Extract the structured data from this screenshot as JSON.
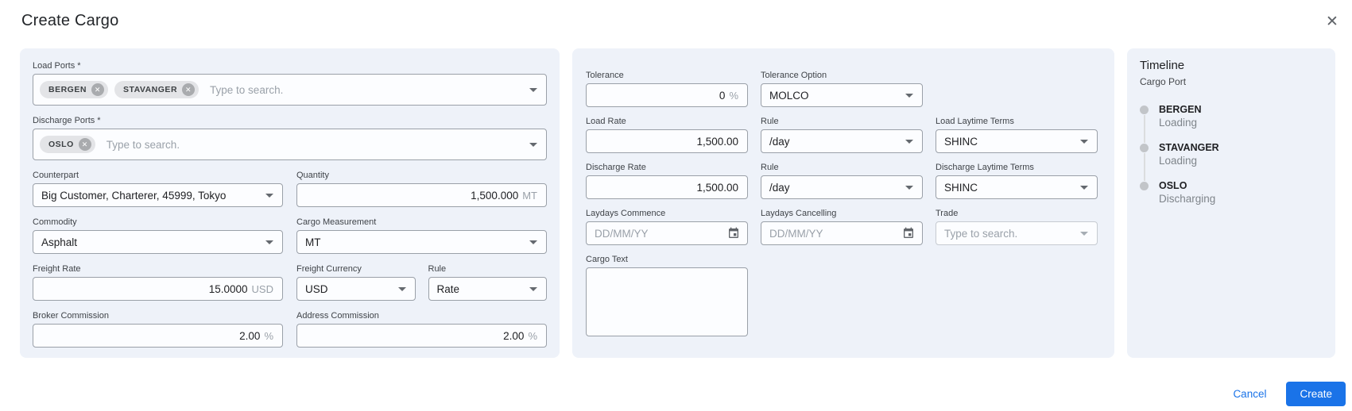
{
  "dialog": {
    "title": "Create Cargo"
  },
  "left_panel": {
    "load_ports": {
      "label": "Load Ports *",
      "chips": [
        "BERGEN",
        "STAVANGER"
      ],
      "placeholder": "Type to search."
    },
    "discharge_ports": {
      "label": "Discharge Ports *",
      "chips": [
        "OSLO"
      ],
      "placeholder": "Type to search."
    },
    "counterpart": {
      "label": "Counterpart",
      "value": "Big Customer, Charterer, 45999, Tokyo"
    },
    "quantity": {
      "label": "Quantity",
      "value": "1,500.000",
      "unit": "MT"
    },
    "commodity": {
      "label": "Commodity",
      "value": "Asphalt"
    },
    "cargo_measurement": {
      "label": "Cargo Measurement",
      "value": "MT"
    },
    "freight_rate": {
      "label": "Freight Rate",
      "value": "15.0000",
      "unit": "USD"
    },
    "freight_currency": {
      "label": "Freight Currency",
      "value": "USD"
    },
    "freight_rule": {
      "label": "Rule",
      "value": "Rate"
    },
    "broker_commission": {
      "label": "Broker Commission",
      "value": "2.00",
      "unit": "%"
    },
    "address_commission": {
      "label": "Address Commission",
      "value": "2.00",
      "unit": "%"
    }
  },
  "middle_panel": {
    "tolerance": {
      "label": "Tolerance",
      "value": "0",
      "unit": "%"
    },
    "tolerance_option": {
      "label": "Tolerance Option",
      "value": "MOLCO"
    },
    "load_rate": {
      "label": "Load Rate",
      "value": "1,500.00"
    },
    "load_rule": {
      "label": "Rule",
      "value": "/day"
    },
    "load_laytime": {
      "label": "Load Laytime Terms",
      "value": "SHINC"
    },
    "discharge_rate": {
      "label": "Discharge Rate",
      "value": "1,500.00"
    },
    "discharge_rule": {
      "label": "Rule",
      "value": "/day"
    },
    "discharge_laytime": {
      "label": "Discharge Laytime Terms",
      "value": "SHINC"
    },
    "laydays_commence": {
      "label": "Laydays Commence",
      "placeholder": "DD/MM/YY"
    },
    "laydays_cancelling": {
      "label": "Laydays Cancelling",
      "placeholder": "DD/MM/YY"
    },
    "trade": {
      "label": "Trade",
      "placeholder": "Type to search."
    },
    "cargo_text": {
      "label": "Cargo Text",
      "value": ""
    }
  },
  "timeline": {
    "title": "Timeline",
    "subtitle": "Cargo Port",
    "items": [
      {
        "port": "BERGEN",
        "activity": "Loading"
      },
      {
        "port": "STAVANGER",
        "activity": "Loading"
      },
      {
        "port": "OSLO",
        "activity": "Discharging"
      }
    ]
  },
  "footer": {
    "cancel_label": "Cancel",
    "create_label": "Create"
  },
  "icons": {
    "close": "✕",
    "chip_remove": "✕"
  },
  "colors": {
    "accent": "#1a73e8",
    "panel_bg": "#eef2f9",
    "chip_bg": "#e3e4e7"
  }
}
